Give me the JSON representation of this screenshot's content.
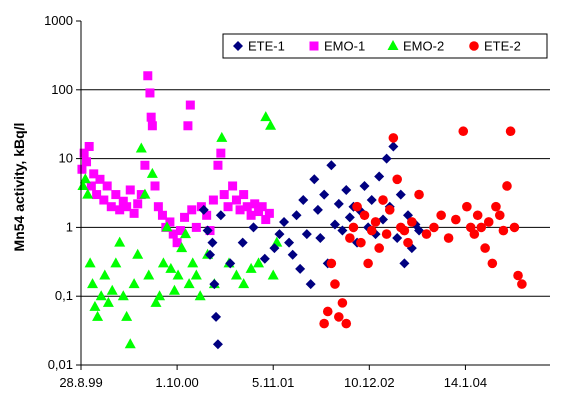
{
  "chart_data": {
    "type": "scatter",
    "ylabel": "Mn54 activity, kBq/l",
    "yscale": "log",
    "ylim": [
      0.01,
      1000
    ],
    "y_ticks": [
      0.01,
      0.1,
      1,
      10,
      100,
      1000
    ],
    "y_tick_labels": [
      "0,01",
      "0,1",
      "1",
      "10",
      "100",
      "1000"
    ],
    "xlim": [
      "1999-08-28",
      "2004-12-31"
    ],
    "x_ticks": [
      "1999-08-28",
      "2000-10-01",
      "2001-11-05",
      "2002-12-10",
      "2004-01-14"
    ],
    "x_tick_labels": [
      "28.8.99",
      "1.10.00",
      "5.11.01",
      "10.12.02",
      "14.1.04"
    ],
    "grid": "horizontal",
    "legend_position": "top-right",
    "series": [
      {
        "name": "ETE-1",
        "color": "#000080",
        "marker": "diamond",
        "points": [
          [
            "2001-01-20",
            1.8
          ],
          [
            "2001-02-05",
            0.9
          ],
          [
            "2001-02-15",
            0.4
          ],
          [
            "2001-02-25",
            0.6
          ],
          [
            "2001-03-05",
            0.15
          ],
          [
            "2001-03-12",
            0.05
          ],
          [
            "2001-03-20",
            0.02
          ],
          [
            "2001-04-01",
            1.5
          ],
          [
            "2001-05-10",
            0.3
          ],
          [
            "2001-07-01",
            0.6
          ],
          [
            "2001-08-15",
            1.0
          ],
          [
            "2001-10-01",
            0.35
          ],
          [
            "2001-11-10",
            0.5
          ],
          [
            "2001-12-01",
            0.8
          ],
          [
            "2001-12-20",
            1.2
          ],
          [
            "2002-01-10",
            0.6
          ],
          [
            "2002-01-25",
            0.4
          ],
          [
            "2002-02-10",
            1.5
          ],
          [
            "2002-02-25",
            0.25
          ],
          [
            "2002-03-10",
            2.5
          ],
          [
            "2002-03-25",
            0.8
          ],
          [
            "2002-04-10",
            0.15
          ],
          [
            "2002-04-25",
            5.0
          ],
          [
            "2002-05-10",
            1.8
          ],
          [
            "2002-05-20",
            0.7
          ],
          [
            "2002-06-05",
            3.0
          ],
          [
            "2002-06-20",
            0.3
          ],
          [
            "2002-07-05",
            8.0
          ],
          [
            "2002-07-20",
            1.1
          ],
          [
            "2002-08-05",
            2.2
          ],
          [
            "2002-08-20",
            0.9
          ],
          [
            "2002-09-05",
            3.5
          ],
          [
            "2002-09-20",
            1.4
          ],
          [
            "2002-10-05",
            2.0
          ],
          [
            "2002-10-20",
            0.6
          ],
          [
            "2002-11-05",
            1.7
          ],
          [
            "2002-11-20",
            4.0
          ],
          [
            "2002-12-05",
            1.0
          ],
          [
            "2002-12-20",
            2.5
          ],
          [
            "2003-01-05",
            0.8
          ],
          [
            "2003-01-20",
            5.5
          ],
          [
            "2003-02-05",
            1.3
          ],
          [
            "2003-02-20",
            10.0
          ],
          [
            "2003-03-05",
            2.0
          ],
          [
            "2003-03-20",
            15.0
          ],
          [
            "2003-04-05",
            0.7
          ],
          [
            "2003-04-20",
            3.0
          ],
          [
            "2003-05-05",
            0.3
          ],
          [
            "2003-05-20",
            1.5
          ],
          [
            "2003-06-05",
            0.5
          ],
          [
            "2003-06-20",
            1.1
          ],
          [
            "2003-07-05",
            0.9
          ]
        ]
      },
      {
        "name": "EMO-1",
        "color": "#FF00FF",
        "marker": "square",
        "points": [
          [
            "1999-09-01",
            7.0
          ],
          [
            "1999-09-10",
            12.0
          ],
          [
            "1999-09-20",
            9.0
          ],
          [
            "1999-10-01",
            15.0
          ],
          [
            "1999-10-10",
            4.0
          ],
          [
            "1999-10-20",
            6.0
          ],
          [
            "1999-11-01",
            3.0
          ],
          [
            "1999-11-15",
            5.0
          ],
          [
            "1999-12-01",
            2.5
          ],
          [
            "1999-12-15",
            4.0
          ],
          [
            "2000-01-01",
            2.0
          ],
          [
            "2000-01-20",
            3.0
          ],
          [
            "2000-02-05",
            1.8
          ],
          [
            "2000-02-20",
            2.4
          ],
          [
            "2000-03-05",
            2.0
          ],
          [
            "2000-03-20",
            3.5
          ],
          [
            "2000-04-05",
            1.6
          ],
          [
            "2000-04-20",
            2.2
          ],
          [
            "2000-05-05",
            3.0
          ],
          [
            "2000-05-20",
            8.0
          ],
          [
            "2000-06-01",
            160.0
          ],
          [
            "2000-06-10",
            90.0
          ],
          [
            "2000-06-15",
            40.0
          ],
          [
            "2000-06-20",
            30.0
          ],
          [
            "2000-07-01",
            4.0
          ],
          [
            "2000-07-15",
            2.0
          ],
          [
            "2000-08-01",
            1.5
          ],
          [
            "2000-08-15",
            1.0
          ],
          [
            "2000-09-01",
            1.2
          ],
          [
            "2000-09-15",
            0.8
          ],
          [
            "2000-10-01",
            0.6
          ],
          [
            "2000-10-15",
            0.9
          ],
          [
            "2000-11-01",
            1.4
          ],
          [
            "2000-11-15",
            30.0
          ],
          [
            "2000-11-25",
            60.0
          ],
          [
            "2000-12-01",
            1.8
          ],
          [
            "2000-12-20",
            1.0
          ],
          [
            "2001-01-10",
            2.0
          ],
          [
            "2001-02-01",
            1.5
          ],
          [
            "2001-02-15",
            0.9
          ],
          [
            "2001-03-01",
            2.5
          ],
          [
            "2001-03-20",
            8.0
          ],
          [
            "2001-04-01",
            12.0
          ],
          [
            "2001-04-15",
            3.0
          ],
          [
            "2001-05-01",
            2.0
          ],
          [
            "2001-05-20",
            4.0
          ],
          [
            "2001-06-05",
            2.5
          ],
          [
            "2001-06-20",
            1.8
          ],
          [
            "2001-07-05",
            3.0
          ],
          [
            "2001-07-20",
            2.0
          ],
          [
            "2001-08-05",
            1.5
          ],
          [
            "2001-08-20",
            2.2
          ],
          [
            "2001-09-05",
            1.7
          ],
          [
            "2001-09-20",
            2.0
          ],
          [
            "2001-10-05",
            1.3
          ],
          [
            "2001-10-20",
            1.6
          ]
        ]
      },
      {
        "name": "EMO-2",
        "color": "#00FF00",
        "marker": "triangle",
        "points": [
          [
            "1999-09-05",
            4.0
          ],
          [
            "1999-09-15",
            5.0
          ],
          [
            "1999-09-25",
            3.0
          ],
          [
            "1999-10-05",
            0.3
          ],
          [
            "1999-10-15",
            0.15
          ],
          [
            "1999-10-25",
            0.07
          ],
          [
            "1999-11-05",
            0.05
          ],
          [
            "1999-11-20",
            0.1
          ],
          [
            "1999-12-05",
            0.2
          ],
          [
            "1999-12-20",
            0.08
          ],
          [
            "2000-01-05",
            0.12
          ],
          [
            "2000-01-20",
            0.3
          ],
          [
            "2000-02-05",
            0.6
          ],
          [
            "2000-02-20",
            0.1
          ],
          [
            "2000-03-05",
            0.05
          ],
          [
            "2000-03-20",
            0.02
          ],
          [
            "2000-04-05",
            0.15
          ],
          [
            "2000-04-20",
            0.4
          ],
          [
            "2000-05-05",
            14.0
          ],
          [
            "2000-05-20",
            3.0
          ],
          [
            "2000-06-05",
            0.2
          ],
          [
            "2000-06-20",
            6.0
          ],
          [
            "2000-07-05",
            0.08
          ],
          [
            "2000-07-20",
            0.1
          ],
          [
            "2000-08-05",
            0.3
          ],
          [
            "2000-08-20",
            1.0
          ],
          [
            "2000-09-05",
            0.25
          ],
          [
            "2000-09-20",
            0.12
          ],
          [
            "2000-10-05",
            0.2
          ],
          [
            "2000-10-20",
            0.5
          ],
          [
            "2000-11-05",
            0.8
          ],
          [
            "2000-11-20",
            0.15
          ],
          [
            "2000-12-05",
            0.3
          ],
          [
            "2000-12-20",
            0.2
          ],
          [
            "2001-01-05",
            0.1
          ],
          [
            "2001-02-05",
            0.4
          ],
          [
            "2001-03-05",
            0.15
          ],
          [
            "2001-04-05",
            20.0
          ],
          [
            "2001-05-05",
            0.3
          ],
          [
            "2001-06-05",
            0.2
          ],
          [
            "2001-07-05",
            0.15
          ],
          [
            "2001-08-05",
            0.25
          ],
          [
            "2001-09-05",
            0.3
          ],
          [
            "2001-10-05",
            40.0
          ],
          [
            "2001-10-25",
            30.0
          ],
          [
            "2001-11-05",
            0.2
          ],
          [
            "2001-11-20",
            0.6
          ]
        ]
      },
      {
        "name": "ETE-2",
        "color": "#FF0000",
        "marker": "circle",
        "points": [
          [
            "2002-06-05",
            0.04
          ],
          [
            "2002-06-20",
            0.06
          ],
          [
            "2002-07-05",
            0.3
          ],
          [
            "2002-07-20",
            0.15
          ],
          [
            "2002-08-05",
            0.05
          ],
          [
            "2002-08-20",
            0.08
          ],
          [
            "2002-09-05",
            0.04
          ],
          [
            "2002-09-20",
            0.7
          ],
          [
            "2002-10-05",
            1.0
          ],
          [
            "2002-10-20",
            2.0
          ],
          [
            "2002-11-05",
            0.6
          ],
          [
            "2002-11-20",
            1.5
          ],
          [
            "2002-12-05",
            0.3
          ],
          [
            "2002-12-20",
            0.9
          ],
          [
            "2003-01-05",
            1.2
          ],
          [
            "2003-01-20",
            0.5
          ],
          [
            "2003-02-05",
            2.5
          ],
          [
            "2003-02-20",
            0.8
          ],
          [
            "2003-03-05",
            1.8
          ],
          [
            "2003-03-20",
            20.0
          ],
          [
            "2003-04-05",
            5.0
          ],
          [
            "2003-04-20",
            1.0
          ],
          [
            "2003-05-05",
            0.9
          ],
          [
            "2003-05-20",
            0.6
          ],
          [
            "2003-06-05",
            1.2
          ],
          [
            "2003-07-05",
            3.0
          ],
          [
            "2003-08-05",
            0.8
          ],
          [
            "2003-09-05",
            1.0
          ],
          [
            "2003-10-05",
            1.5
          ],
          [
            "2003-11-05",
            0.7
          ],
          [
            "2003-12-05",
            1.3
          ],
          [
            "2004-01-05",
            25.0
          ],
          [
            "2004-01-20",
            2.0
          ],
          [
            "2004-02-05",
            1.0
          ],
          [
            "2004-02-20",
            0.8
          ],
          [
            "2004-03-05",
            1.5
          ],
          [
            "2004-03-20",
            1.0
          ],
          [
            "2004-04-05",
            0.5
          ],
          [
            "2004-04-20",
            1.2
          ],
          [
            "2004-05-05",
            0.3
          ],
          [
            "2004-05-20",
            2.0
          ],
          [
            "2004-06-05",
            1.5
          ],
          [
            "2004-06-20",
            0.9
          ],
          [
            "2004-07-05",
            4.0
          ],
          [
            "2004-07-20",
            25.0
          ],
          [
            "2004-08-05",
            1.0
          ],
          [
            "2004-08-20",
            0.2
          ],
          [
            "2004-09-05",
            0.15
          ]
        ]
      }
    ]
  }
}
